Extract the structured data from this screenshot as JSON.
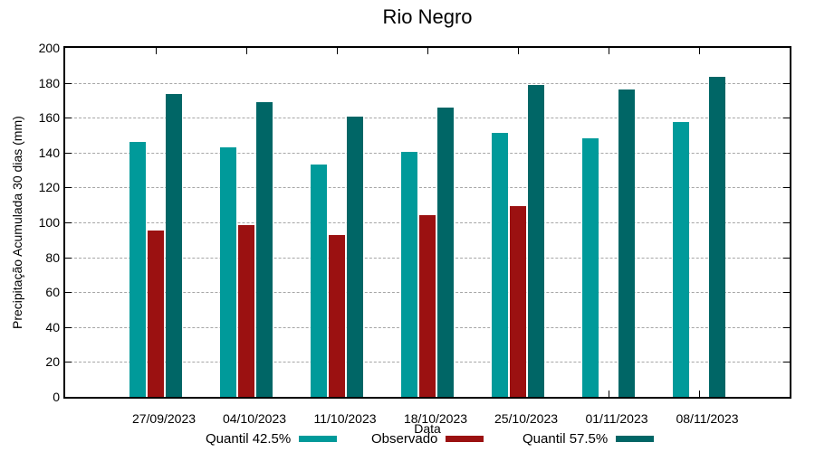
{
  "title": "Rio Negro",
  "axes": {
    "xlabel": "Data",
    "ylabel": "Precipitação Acumulada 30 dias (mm)"
  },
  "colors": {
    "quantil_low": "#009a9a",
    "observado": "#9b1111",
    "quantil_high": "#066",
    "grid": "#a6a6a6"
  },
  "chart_data": {
    "type": "bar",
    "title": "Rio Negro",
    "xlabel": "Data",
    "ylabel": "Precipitação Acumulada 30 dias (mm)",
    "ylim": [
      0,
      200
    ],
    "ytick_step": 20,
    "grid": "horizontal dashed gridlines every 20, solid black box border",
    "legend_position": "below plot, horizontal row",
    "categories": [
      "27/09/2023",
      "04/10/2023",
      "11/10/2023",
      "18/10/2023",
      "25/10/2023",
      "01/11/2023",
      "08/11/2023"
    ],
    "series": [
      {
        "name": "Quantil 42.5%",
        "color": "#009a9a",
        "values": [
          146,
          143,
          133,
          140.5,
          151.5,
          148,
          157.5
        ]
      },
      {
        "name": "Observado",
        "color": "#9b1111",
        "values": [
          95.5,
          98.5,
          93,
          104,
          109.5,
          null,
          null
        ]
      },
      {
        "name": "Quantil 57.5%",
        "color": "#006666",
        "values": [
          173.5,
          169,
          160.5,
          166,
          179,
          176,
          183.5
        ]
      }
    ]
  }
}
